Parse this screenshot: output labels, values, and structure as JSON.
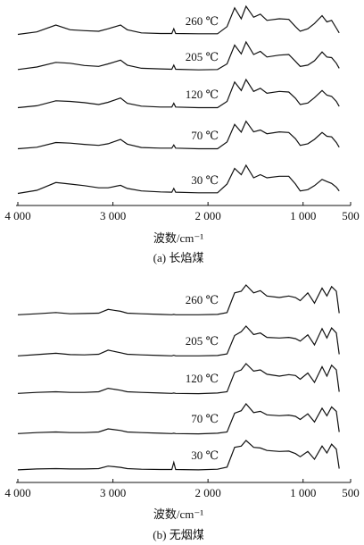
{
  "chart_data": [
    {
      "type": "line",
      "title": "(a) 长焰煤",
      "xlabel": "波数/cm⁻¹",
      "x": [
        4000,
        3800,
        3600,
        3450,
        3300,
        3150,
        3050,
        2920,
        2850,
        2700,
        2500,
        2380,
        2360,
        2340,
        2100,
        1900,
        1800,
        1720,
        1650,
        1600,
        1520,
        1450,
        1380,
        1250,
        1150,
        1080,
        1030,
        950,
        880,
        800,
        750,
        700,
        650,
        620
      ],
      "xlim": [
        4000,
        500
      ],
      "xticks": [
        {
          "value": 4000,
          "label": "4 000"
        },
        {
          "value": 3000,
          "label": "3 000"
        },
        {
          "value": 2000,
          "label": "2 000"
        },
        {
          "value": 1000,
          "label": "1 000"
        },
        500
      ],
      "ylim": [
        0,
        10
      ],
      "series": [
        {
          "name": "260 ℃",
          "color": "#111111",
          "values": [
            1,
            1.8,
            4,
            2.5,
            2.2,
            2,
            2.8,
            4,
            2.5,
            1.5,
            1.3,
            1.3,
            2.8,
            1.3,
            1.2,
            1.2,
            3.5,
            9.5,
            6,
            10,
            6.5,
            7.5,
            5.5,
            6,
            5.8,
            3.5,
            2,
            2.8,
            4.5,
            7,
            5,
            5.5,
            3,
            1.5
          ]
        },
        {
          "name": "205 ℃",
          "color": "#111111",
          "values": [
            1.2,
            2,
            3.5,
            3.2,
            2.5,
            2.2,
            3,
            4.2,
            2.6,
            1.6,
            1.4,
            1.3,
            2.6,
            1.3,
            1.1,
            1.2,
            3,
            9,
            6.2,
            10,
            6,
            7,
            5.2,
            5.8,
            6,
            3.8,
            2.2,
            2.6,
            4,
            6.8,
            5.2,
            5,
            3.2,
            1.6
          ]
        },
        {
          "name": "120 ℃",
          "color": "#111111",
          "values": [
            1,
            1.6,
            3.2,
            3,
            2.6,
            2,
            2.7,
            4.1,
            2.4,
            1.5,
            1.2,
            1.2,
            2.4,
            1.2,
            1,
            1,
            3,
            9.2,
            6.5,
            10,
            6.2,
            7.2,
            5.6,
            6.2,
            6,
            4,
            2,
            2.5,
            4.2,
            6.5,
            5,
            4.6,
            3,
            1.4
          ]
        },
        {
          "name": "70 ℃",
          "color": "#111111",
          "values": [
            1,
            1.5,
            3,
            2.8,
            2.4,
            2.1,
            2.6,
            4,
            2.5,
            1.4,
            1.2,
            1.2,
            2.2,
            1.2,
            1,
            1,
            3.2,
            8.8,
            6.3,
            9.8,
            6.4,
            7,
            5.8,
            6.4,
            6.2,
            4.2,
            2.1,
            2.6,
            4,
            6.2,
            5,
            4.8,
            3,
            1.5
          ]
        },
        {
          "name": "30 ℃",
          "color": "#111111",
          "values": [
            1,
            2,
            4.5,
            4,
            3.5,
            2.8,
            2.8,
            3.6,
            2.6,
            1.8,
            1.5,
            1.4,
            2.6,
            1.4,
            1.2,
            1.2,
            4,
            9,
            7,
            10,
            6,
            7,
            6,
            6.5,
            6.5,
            4,
            1.8,
            2.2,
            3.5,
            5.5,
            4.8,
            4.2,
            3,
            1.8
          ]
        }
      ]
    },
    {
      "type": "line",
      "title": "(b) 无烟煤",
      "xlabel": "波数/cm⁻¹",
      "x": [
        4000,
        3800,
        3600,
        3450,
        3300,
        3150,
        3050,
        2920,
        2850,
        2700,
        2500,
        2380,
        2360,
        2340,
        2100,
        1900,
        1800,
        1720,
        1650,
        1600,
        1520,
        1450,
        1380,
        1250,
        1150,
        1080,
        1030,
        950,
        880,
        800,
        750,
        700,
        650,
        620
      ],
      "xlim": [
        4000,
        500
      ],
      "xticks": [
        {
          "value": 4000,
          "label": "4 000"
        },
        {
          "value": 3000,
          "label": "3 000"
        },
        {
          "value": 2000,
          "label": "2 000"
        },
        {
          "value": 1000,
          "label": "1 000"
        },
        500
      ],
      "ylim": [
        0,
        10
      ],
      "series": [
        {
          "name": "260 ℃",
          "color": "#111111",
          "values": [
            0.5,
            0.8,
            1.2,
            0.8,
            0.9,
            1,
            2.2,
            1.6,
            1,
            0.8,
            0.6,
            0.5,
            0.6,
            0.5,
            0.5,
            0.6,
            1.2,
            7.5,
            8,
            10,
            7.5,
            8.2,
            6.5,
            6,
            6.5,
            6,
            5,
            7.5,
            4.2,
            9,
            6.5,
            9.5,
            8,
            1
          ]
        },
        {
          "name": "205 ℃",
          "color": "#111111",
          "values": [
            0.5,
            0.9,
            1.3,
            0.9,
            0.8,
            1,
            2.3,
            1.5,
            1,
            0.8,
            0.6,
            0.5,
            0.7,
            0.5,
            0.5,
            0.6,
            1.1,
            7,
            8.2,
            10,
            7.3,
            7.8,
            6.4,
            6.2,
            6.4,
            6,
            5.2,
            7.2,
            4,
            9.2,
            6.2,
            9.4,
            7.8,
            1
          ]
        },
        {
          "name": "120 ℃",
          "color": "#111111",
          "values": [
            0.5,
            0.8,
            1,
            0.8,
            0.8,
            1,
            2.1,
            1.5,
            1,
            0.8,
            0.6,
            0.5,
            0.6,
            0.5,
            0.4,
            0.6,
            1,
            7.2,
            8,
            10,
            7.6,
            8,
            6.6,
            6,
            6.5,
            6.2,
            5,
            7,
            4,
            9,
            6,
            9.5,
            8,
            1
          ]
        },
        {
          "name": "70 ℃",
          "color": "#111111",
          "values": [
            0.5,
            0.8,
            1,
            0.8,
            0.8,
            1,
            2,
            1.5,
            1,
            0.8,
            0.6,
            0.5,
            0.6,
            0.5,
            0.4,
            0.6,
            1,
            7,
            7.8,
            10,
            7.2,
            7.6,
            6.5,
            6.2,
            6.4,
            6,
            5,
            6.8,
            4.2,
            8.6,
            6.2,
            9,
            7.6,
            1
          ]
        },
        {
          "name": "30 ℃",
          "color": "#111111",
          "values": [
            0.6,
            0.9,
            1,
            0.9,
            0.9,
            1,
            1.8,
            1.4,
            1,
            0.8,
            0.7,
            0.7,
            3,
            0.7,
            0.6,
            0.8,
            1.5,
            7.8,
            8.2,
            10,
            7.8,
            7.6,
            6.8,
            6.5,
            6.6,
            5.8,
            4.8,
            6.5,
            4,
            8.2,
            6,
            8.8,
            7.2,
            1
          ]
        }
      ]
    }
  ]
}
